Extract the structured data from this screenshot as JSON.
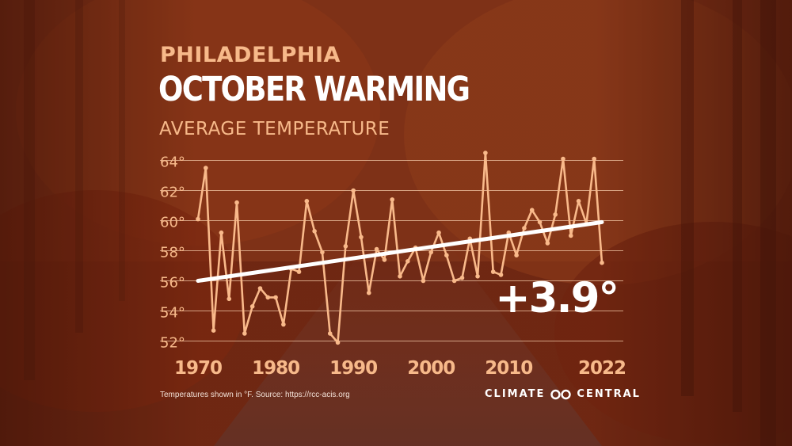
{
  "header": {
    "city": "PHILADELPHIA",
    "title": "OCTOBER WARMING",
    "subtitle": "AVERAGE TEMPERATURE"
  },
  "footer": {
    "footnote": "Temperatures shown in °F. Source: https://rcc-acis.org",
    "logo_left": "CLIMATE",
    "logo_right": "CENTRAL"
  },
  "colors": {
    "series": "#f9b98a",
    "trend": "#ffffff",
    "grid": "#f3c9a8",
    "tick_labels": "#f7b98a",
    "change_label": "#ffffff"
  },
  "chart_data": {
    "type": "line",
    "title": "OCTOBER WARMING",
    "subtitle": "AVERAGE TEMPERATURE",
    "xlabel": "",
    "ylabel": "",
    "xlim": [
      1970,
      2022
    ],
    "ylim": [
      51.5,
      64.5
    ],
    "x_ticks": [
      1970,
      1980,
      1990,
      2000,
      2010,
      2022
    ],
    "x_tick_labels": [
      "1970",
      "1980",
      "1990",
      "2000",
      "2010",
      "2022"
    ],
    "y_ticks": [
      52,
      54,
      56,
      58,
      60,
      62,
      64
    ],
    "y_tick_labels": [
      "52°",
      "54°",
      "56°",
      "58°",
      "60°",
      "62°",
      "64°"
    ],
    "grid": true,
    "legend": "none",
    "series": [
      {
        "x": [
          1970,
          1971,
          1972,
          1973,
          1974,
          1975,
          1976,
          1977,
          1978,
          1979,
          1980,
          1981,
          1982,
          1983,
          1984,
          1985,
          1986,
          1987,
          1988,
          1989,
          1990,
          1991,
          1992,
          1993,
          1994,
          1995,
          1996,
          1997,
          1998,
          1999,
          2000,
          2001,
          2002,
          2003,
          2004,
          2005,
          2006,
          2007,
          2008,
          2009,
          2010,
          2011,
          2012,
          2013,
          2014,
          2015,
          2016,
          2017,
          2018,
          2019,
          2020,
          2021,
          2022
        ],
        "values": [
          60.1,
          63.5,
          52.7,
          59.2,
          54.8,
          61.2,
          52.5,
          54.3,
          55.5,
          54.9,
          54.9,
          53.1,
          56.8,
          56.6,
          61.3,
          59.3,
          57.9,
          52.5,
          51.9,
          58.3,
          62.0,
          58.9,
          55.2,
          58.1,
          57.4,
          61.4,
          56.3,
          57.3,
          58.2,
          56.0,
          57.9,
          59.2,
          57.7,
          56.0,
          56.2,
          58.8,
          56.3,
          64.5,
          56.6,
          56.4,
          59.2,
          57.7,
          59.5,
          60.7,
          59.9,
          58.5,
          60.4,
          64.1,
          59.0,
          61.3,
          59.8,
          64.1,
          57.2
        ]
      }
    ],
    "trend": {
      "start": [
        1970,
        56.0
      ],
      "end": [
        2022,
        59.9
      ]
    },
    "annotation": "+3.9°"
  }
}
